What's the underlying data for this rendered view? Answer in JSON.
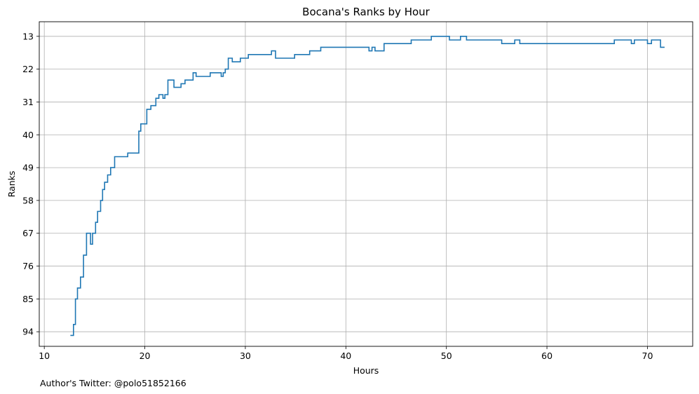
{
  "footer_text": "Author's Twitter: @polo51852166",
  "chart_data": {
    "type": "line",
    "step": true,
    "title": "Bocana's Ranks by Hour",
    "xlabel": "Hours",
    "ylabel": "Ranks",
    "xlim": [
      9.5,
      74.5
    ],
    "ylim": [
      98,
      9
    ],
    "y_inverted": true,
    "xticks": [
      10,
      20,
      30,
      40,
      50,
      60,
      70
    ],
    "yticks": [
      13,
      22,
      31,
      40,
      49,
      58,
      67,
      76,
      85,
      94
    ],
    "grid": true,
    "line_color": "#1f77b4",
    "series": [
      {
        "x": [
          12.6,
          12.9,
          13.1,
          13.3,
          13.6,
          13.9,
          14.2,
          14.6,
          14.8,
          15.1,
          15.3,
          15.6,
          15.8,
          16.0,
          16.3,
          16.6,
          17.0,
          18.3,
          19.4,
          19.6,
          20.2,
          20.6,
          21.1,
          21.4,
          21.8,
          22.0,
          22.3,
          22.9,
          23.6,
          24.0,
          24.8,
          25.1,
          26.5,
          27.6,
          27.8,
          28.0,
          28.3,
          28.7,
          29.5,
          30.1,
          30.3,
          32.6,
          33.0,
          34.9,
          36.4,
          37.5,
          41.9,
          42.3,
          42.6,
          42.9,
          43.8,
          46.5,
          48.5,
          50.3,
          51.4,
          52.0,
          55.5,
          56.8,
          57.3,
          59.5,
          66.7,
          68.4,
          68.7,
          70.0,
          70.4,
          71.3,
          71.7
        ],
        "y": [
          95,
          92,
          85,
          82,
          79,
          73,
          67,
          70,
          67,
          64,
          61,
          58,
          55,
          53,
          51,
          49,
          46,
          45,
          39,
          37,
          33,
          32,
          30,
          29,
          30,
          29,
          25,
          27,
          26,
          25,
          23,
          24,
          23,
          24,
          23,
          22,
          19,
          20,
          19,
          19,
          18,
          17,
          19,
          18,
          17,
          16,
          16,
          17,
          16,
          17,
          15,
          14,
          13,
          14,
          13,
          14,
          15,
          14,
          15,
          15,
          14,
          15,
          14,
          15,
          14,
          16,
          16
        ]
      }
    ]
  }
}
